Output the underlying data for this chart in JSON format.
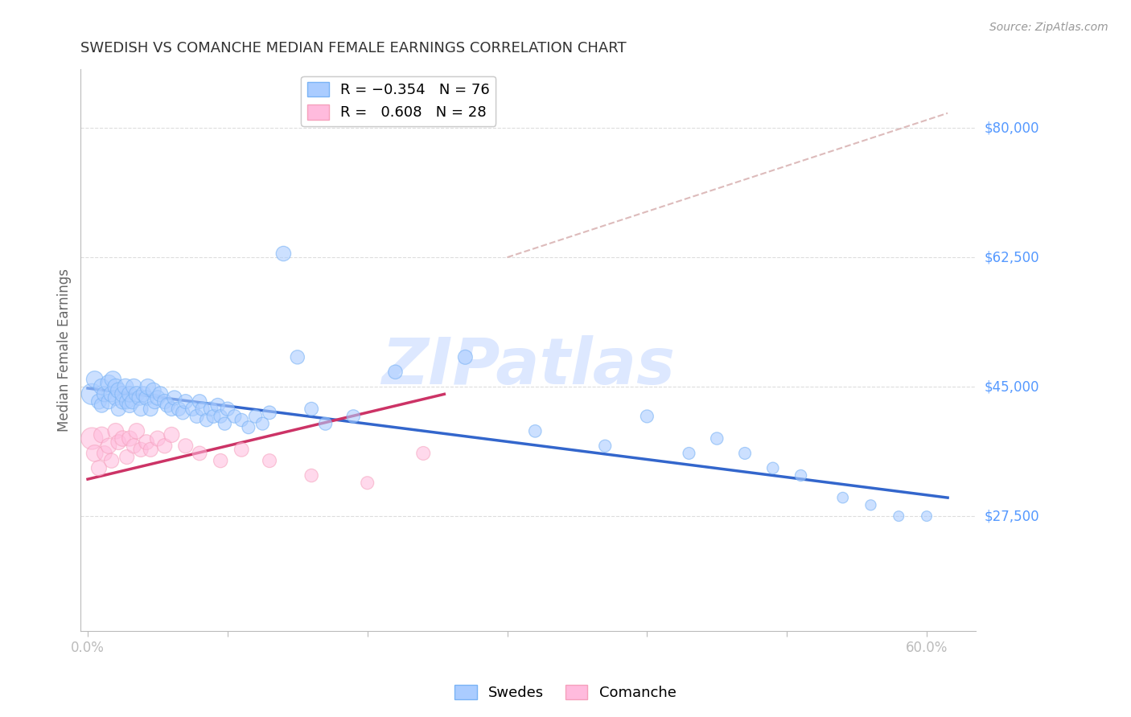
{
  "title": "SWEDISH VS COMANCHE MEDIAN FEMALE EARNINGS CORRELATION CHART",
  "source": "Source: ZipAtlas.com",
  "ylabel": "Median Female Earnings",
  "ytick_labels": [
    "$27,500",
    "$45,000",
    "$62,500",
    "$80,000"
  ],
  "ytick_values": [
    27500,
    45000,
    62500,
    80000
  ],
  "ymin": 12000,
  "ymax": 88000,
  "xmin": -0.005,
  "xmax": 0.635,
  "title_color": "#333333",
  "source_color": "#999999",
  "blue_color": "#7ab3f5",
  "pink_color": "#f5a0bc",
  "blue_fill_color": "#aaccff",
  "pink_fill_color": "#ffbbdd",
  "blue_line_color": "#3366cc",
  "pink_line_color": "#cc3366",
  "dashed_line_color": "#ddbbbb",
  "watermark_color": "#dde8ff",
  "axis_color": "#bbbbbb",
  "grid_color": "#dddddd",
  "ylabel_color": "#666666",
  "ytick_color": "#5599ff",
  "blue_scatter_x": [
    0.003,
    0.005,
    0.008,
    0.01,
    0.01,
    0.012,
    0.015,
    0.015,
    0.017,
    0.018,
    0.02,
    0.02,
    0.022,
    0.022,
    0.025,
    0.025,
    0.027,
    0.028,
    0.03,
    0.03,
    0.032,
    0.033,
    0.035,
    0.037,
    0.038,
    0.04,
    0.042,
    0.043,
    0.045,
    0.047,
    0.048,
    0.05,
    0.052,
    0.055,
    0.057,
    0.06,
    0.062,
    0.065,
    0.068,
    0.07,
    0.075,
    0.078,
    0.08,
    0.082,
    0.085,
    0.088,
    0.09,
    0.093,
    0.095,
    0.098,
    0.1,
    0.105,
    0.11,
    0.115,
    0.12,
    0.125,
    0.13,
    0.14,
    0.15,
    0.16,
    0.17,
    0.19,
    0.22,
    0.27,
    0.32,
    0.37,
    0.4,
    0.43,
    0.45,
    0.47,
    0.49,
    0.51,
    0.54,
    0.56,
    0.58,
    0.6
  ],
  "blue_scatter_y": [
    44000,
    46000,
    43000,
    45000,
    42500,
    44000,
    45500,
    43000,
    44000,
    46000,
    43500,
    45000,
    44500,
    42000,
    43000,
    44000,
    45000,
    43000,
    42500,
    44000,
    43000,
    45000,
    44000,
    43500,
    42000,
    44000,
    43500,
    45000,
    42000,
    44500,
    43000,
    43500,
    44000,
    43000,
    42500,
    42000,
    43500,
    42000,
    41500,
    43000,
    42000,
    41000,
    43000,
    42000,
    40500,
    42000,
    41000,
    42500,
    41000,
    40000,
    42000,
    41000,
    40500,
    39500,
    41000,
    40000,
    41500,
    63000,
    49000,
    42000,
    40000,
    41000,
    47000,
    49000,
    39000,
    37000,
    41000,
    36000,
    38000,
    36000,
    34000,
    33000,
    30000,
    29000,
    27500,
    27500
  ],
  "blue_scatter_size": [
    350,
    220,
    180,
    200,
    170,
    185,
    210,
    175,
    190,
    215,
    185,
    200,
    195,
    165,
    180,
    195,
    205,
    175,
    180,
    195,
    175,
    200,
    190,
    180,
    165,
    185,
    175,
    195,
    165,
    185,
    170,
    175,
    185,
    170,
    165,
    160,
    170,
    158,
    152,
    165,
    158,
    148,
    162,
    152,
    142,
    155,
    145,
    158,
    142,
    135,
    155,
    142,
    138,
    130,
    140,
    132,
    145,
    175,
    155,
    145,
    135,
    138,
    158,
    165,
    125,
    118,
    132,
    115,
    122,
    115,
    108,
    105,
    95,
    90,
    85,
    85
  ],
  "pink_scatter_x": [
    0.003,
    0.005,
    0.008,
    0.01,
    0.012,
    0.015,
    0.017,
    0.02,
    0.022,
    0.025,
    0.028,
    0.03,
    0.033,
    0.035,
    0.038,
    0.042,
    0.045,
    0.05,
    0.055,
    0.06,
    0.07,
    0.08,
    0.095,
    0.11,
    0.13,
    0.16,
    0.2,
    0.24
  ],
  "pink_scatter_y": [
    38000,
    36000,
    34000,
    38500,
    36000,
    37000,
    35000,
    39000,
    37500,
    38000,
    35500,
    38000,
    37000,
    39000,
    36500,
    37500,
    36500,
    38000,
    37000,
    38500,
    37000,
    36000,
    35000,
    36500,
    35000,
    33000,
    32000,
    36000
  ],
  "pink_scatter_size": [
    380,
    220,
    185,
    200,
    178,
    192,
    172,
    198,
    182,
    195,
    168,
    188,
    172,
    195,
    170,
    182,
    168,
    185,
    172,
    188,
    168,
    162,
    155,
    162,
    148,
    138,
    132,
    148
  ],
  "blue_trend_x": [
    0.0,
    0.615
  ],
  "blue_trend_y": [
    44800,
    30000
  ],
  "pink_trend_x": [
    0.0,
    0.255
  ],
  "pink_trend_y": [
    32500,
    44000
  ],
  "dashed_trend_x": [
    0.3,
    0.615
  ],
  "dashed_trend_y": [
    62500,
    82000
  ]
}
